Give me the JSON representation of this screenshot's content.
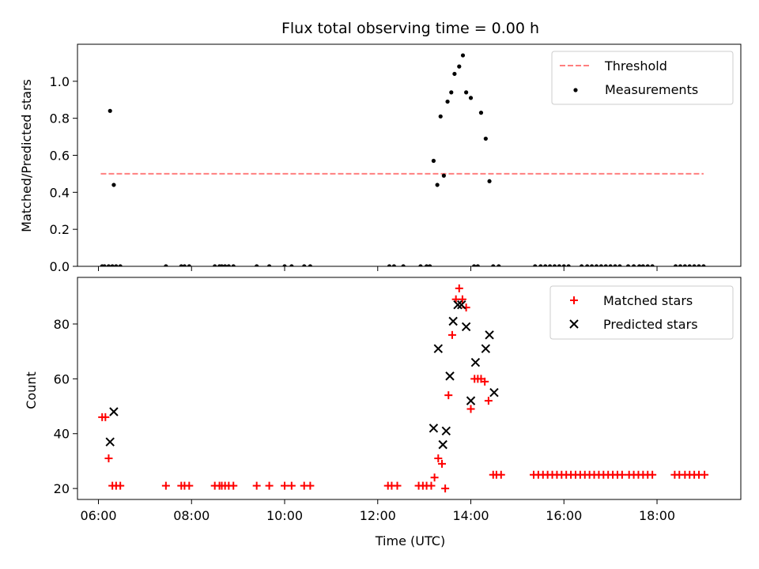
{
  "figure": {
    "title": "Flux total observing time = 0.00 h",
    "xlabel": "Time (UTC)"
  },
  "chart_data": [
    {
      "type": "scatter",
      "title": "Flux total observing time = 0.00 h",
      "xlabel": "",
      "ylabel": "Matched/Predicted stars",
      "xlim": [
        5.55,
        19.8
      ],
      "ylim": [
        0.0,
        1.2
      ],
      "yticks": [
        0.0,
        0.2,
        0.4,
        0.6,
        0.8,
        1.0
      ],
      "xticks": [
        6,
        8,
        10,
        12,
        14,
        16,
        18
      ],
      "xtick_labels": [
        "",
        "",
        "",
        "",
        "",
        "",
        ""
      ],
      "legend_position": "upper-right",
      "series": [
        {
          "name": "Threshold",
          "kind": "line",
          "style": "dashed",
          "color": "#ff7f7f",
          "x": [
            6.05,
            19.0
          ],
          "y": [
            0.5,
            0.5
          ]
        },
        {
          "name": "Measurements",
          "kind": "dots",
          "color": "#000000",
          "x": [
            6.08,
            6.13,
            6.22,
            6.3,
            6.38,
            6.47,
            7.45,
            7.78,
            7.85,
            7.95,
            8.5,
            8.6,
            8.65,
            8.72,
            8.8,
            8.9,
            9.4,
            9.67,
            10.0,
            10.15,
            10.42,
            10.55,
            12.25,
            12.35,
            12.55,
            12.92,
            13.05,
            13.12,
            13.2,
            13.28,
            13.35,
            13.42,
            13.5,
            13.58,
            13.65,
            13.75,
            13.83,
            13.9,
            14.0,
            14.07,
            14.15,
            14.22,
            14.32,
            14.4,
            14.48,
            14.6,
            15.38,
            15.5,
            15.6,
            15.7,
            15.8,
            15.9,
            16.0,
            16.1,
            16.38,
            16.5,
            16.6,
            16.7,
            16.8,
            16.9,
            17.0,
            17.1,
            17.2,
            17.38,
            17.5,
            17.62,
            17.7,
            17.8,
            17.9,
            18.4,
            18.5,
            18.6,
            18.7,
            18.8,
            18.9,
            19.0,
            6.25,
            6.33
          ],
          "y": [
            0,
            0,
            0,
            0,
            0,
            0,
            0,
            0,
            0,
            0,
            0,
            0,
            0,
            0,
            0,
            0,
            0,
            0,
            0,
            0,
            0,
            0,
            0,
            0,
            0,
            0,
            0,
            0,
            0.57,
            0.44,
            0.81,
            0.49,
            0.89,
            0.94,
            1.04,
            1.08,
            1.14,
            0.94,
            0.91,
            0,
            0,
            0.83,
            0.69,
            0.46,
            0,
            0,
            0,
            0,
            0,
            0,
            0,
            0,
            0,
            0,
            0,
            0,
            0,
            0,
            0,
            0,
            0,
            0,
            0,
            0,
            0,
            0,
            0,
            0,
            0,
            0,
            0,
            0,
            0,
            0,
            0,
            0,
            0.84,
            0.44
          ]
        }
      ]
    },
    {
      "type": "scatter",
      "title": "",
      "xlabel": "Time (UTC)",
      "ylabel": "Count",
      "xlim": [
        5.55,
        19.8
      ],
      "ylim": [
        16,
        97
      ],
      "yticks": [
        20,
        40,
        60,
        80
      ],
      "xticks": [
        6,
        8,
        10,
        12,
        14,
        16,
        18
      ],
      "xtick_labels": [
        "06:00",
        "08:00",
        "10:00",
        "12:00",
        "14:00",
        "16:00",
        "18:00"
      ],
      "legend_position": "upper-right",
      "series": [
        {
          "name": "Matched stars",
          "kind": "plus",
          "color": "#ff0000",
          "x": [
            6.08,
            6.15,
            6.22,
            6.3,
            6.38,
            6.47,
            7.45,
            7.78,
            7.85,
            7.95,
            8.5,
            8.6,
            8.65,
            8.72,
            8.8,
            8.9,
            9.4,
            9.67,
            10.0,
            10.15,
            10.42,
            10.55,
            12.22,
            12.3,
            12.42,
            12.88,
            12.97,
            13.05,
            13.15,
            13.22,
            13.3,
            13.38,
            13.45,
            13.52,
            13.6,
            13.68,
            13.75,
            13.82,
            13.9,
            14.0,
            14.08,
            14.15,
            14.22,
            14.3,
            14.38,
            14.48,
            14.55,
            14.65,
            15.35,
            15.45,
            15.55,
            15.65,
            15.75,
            15.85,
            15.95,
            16.05,
            16.15,
            16.25,
            16.35,
            16.45,
            16.55,
            16.65,
            16.75,
            16.85,
            16.95,
            17.05,
            17.15,
            17.25,
            17.4,
            17.5,
            17.6,
            17.7,
            17.8,
            17.9,
            18.38,
            18.48,
            18.6,
            18.7,
            18.8,
            18.9,
            19.02
          ],
          "y": [
            46,
            46,
            31,
            21,
            21,
            21,
            21,
            21,
            21,
            21,
            21,
            21,
            21,
            21,
            21,
            21,
            21,
            21,
            21,
            21,
            21,
            21,
            21,
            21,
            21,
            21,
            21,
            21,
            21,
            24,
            31,
            29,
            20,
            54,
            76,
            89,
            93,
            89,
            86,
            49,
            60,
            60,
            60,
            59,
            52,
            25,
            25,
            25,
            25,
            25,
            25,
            25,
            25,
            25,
            25,
            25,
            25,
            25,
            25,
            25,
            25,
            25,
            25,
            25,
            25,
            25,
            25,
            25,
            25,
            25,
            25,
            25,
            25,
            25,
            25,
            25,
            25,
            25,
            25,
            25,
            25
          ]
        },
        {
          "name": "Predicted stars",
          "kind": "x",
          "color": "#000000",
          "x": [
            6.25,
            6.33,
            13.2,
            13.3,
            13.4,
            13.47,
            13.55,
            13.62,
            13.72,
            13.8,
            13.9,
            14.0,
            14.1,
            14.32,
            14.4,
            14.5
          ],
          "y": [
            37,
            48,
            42,
            71,
            36,
            41,
            61,
            81,
            87,
            87,
            79,
            52,
            66,
            71,
            76,
            55
          ]
        }
      ]
    }
  ]
}
